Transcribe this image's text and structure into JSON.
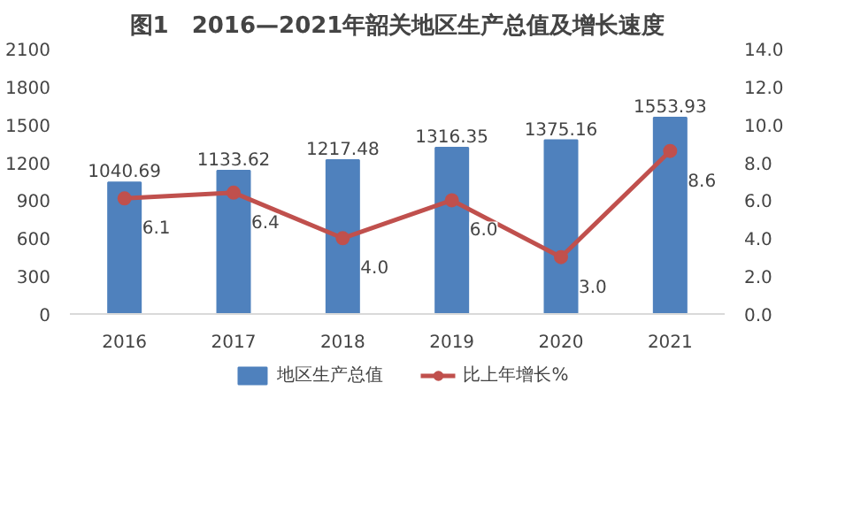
{
  "chart_data": {
    "type": "bar",
    "title": "图1　2016—2021年韶关地区生产总值及增长速度",
    "categories": [
      "2016",
      "2017",
      "2018",
      "2019",
      "2020",
      "2021"
    ],
    "series": [
      {
        "name": "地区生产总值",
        "color": "#4f81bd",
        "values": [
          1040.69,
          1133.62,
          1217.48,
          1316.35,
          1375.16,
          1553.93
        ]
      },
      {
        "name": "比上年增长%",
        "type": "line",
        "axis": "y2",
        "color": "#c0504d",
        "marker": "circle",
        "values": [
          6.1,
          6.4,
          4.0,
          6.0,
          3.0,
          8.6
        ],
        "value_labels": [
          "6.1",
          "6.4",
          "4.0",
          "6.0",
          "3.0",
          "8.6"
        ]
      }
    ],
    "ylim": [
      0,
      2100
    ],
    "yticks": [
      0,
      300,
      600,
      900,
      1200,
      1500,
      1800,
      2100
    ],
    "y2lim": [
      0,
      14
    ],
    "y2ticks": [
      {
        "value": 0,
        "label": "0.0"
      },
      {
        "value": 2,
        "label": "2.0"
      },
      {
        "value": 4,
        "label": "4.0"
      },
      {
        "value": 6,
        "label": "6.0"
      },
      {
        "value": 8,
        "label": "8.0"
      },
      {
        "value": 10,
        "label": "10.0"
      },
      {
        "value": 12,
        "label": "12.0"
      },
      {
        "value": 14,
        "label": "14.0"
      }
    ],
    "data_labels": true,
    "legend": "bottom",
    "grid": false
  }
}
